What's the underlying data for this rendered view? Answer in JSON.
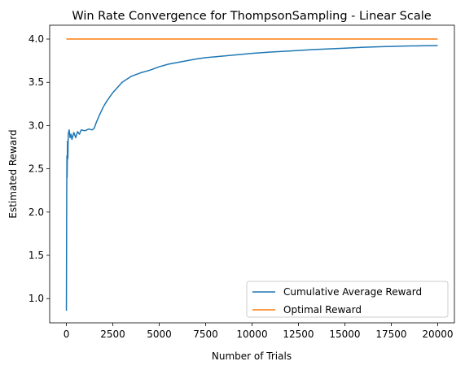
{
  "chart_data": {
    "type": "line",
    "title": "Win Rate Convergence for ThompsonSampling - Linear Scale",
    "xlabel": "Number of Trials",
    "ylabel": "Estimated Reward",
    "xlim": [
      -900,
      20900
    ],
    "ylim": [
      0.72,
      4.16
    ],
    "xticks": [
      0,
      2500,
      5000,
      7500,
      10000,
      12500,
      15000,
      17500,
      20000
    ],
    "yticks": [
      1.0,
      1.5,
      2.0,
      2.5,
      3.0,
      3.5,
      4.0
    ],
    "xtick_labels": [
      "0",
      "2500",
      "5000",
      "7500",
      "10000",
      "12500",
      "15000",
      "17500",
      "20000"
    ],
    "ytick_labels": [
      "1.0",
      "1.5",
      "2.0",
      "2.5",
      "3.0",
      "3.5",
      "4.0"
    ],
    "grid": false,
    "legend_position": "lower-right",
    "series": [
      {
        "name": "Cumulative Average Reward",
        "color": "#1f77b4",
        "x": [
          1,
          10,
          20,
          30,
          40,
          60,
          80,
          100,
          150,
          200,
          250,
          300,
          400,
          500,
          600,
          700,
          800,
          1000,
          1200,
          1400,
          1500,
          1600,
          1800,
          2000,
          2200,
          2500,
          3000,
          3500,
          4000,
          4500,
          5000,
          5500,
          6000,
          6500,
          7000,
          7500,
          8000,
          9000,
          10000,
          11000,
          12000,
          13000,
          14000,
          15000,
          16000,
          17000,
          18000,
          19000,
          20000
        ],
        "y": [
          0.86,
          1.6,
          2.3,
          2.65,
          2.4,
          2.82,
          2.62,
          2.9,
          2.95,
          2.86,
          2.9,
          2.84,
          2.92,
          2.86,
          2.93,
          2.9,
          2.95,
          2.94,
          2.96,
          2.95,
          2.97,
          3.03,
          3.13,
          3.22,
          3.29,
          3.38,
          3.5,
          3.57,
          3.61,
          3.64,
          3.68,
          3.71,
          3.73,
          3.75,
          3.77,
          3.785,
          3.795,
          3.815,
          3.835,
          3.85,
          3.862,
          3.875,
          3.885,
          3.895,
          3.905,
          3.912,
          3.918,
          3.922,
          3.925
        ]
      },
      {
        "name": "Optimal Reward",
        "color": "#ff7f0e",
        "x": [
          0,
          20000
        ],
        "y": [
          4.0,
          4.0
        ]
      }
    ]
  }
}
